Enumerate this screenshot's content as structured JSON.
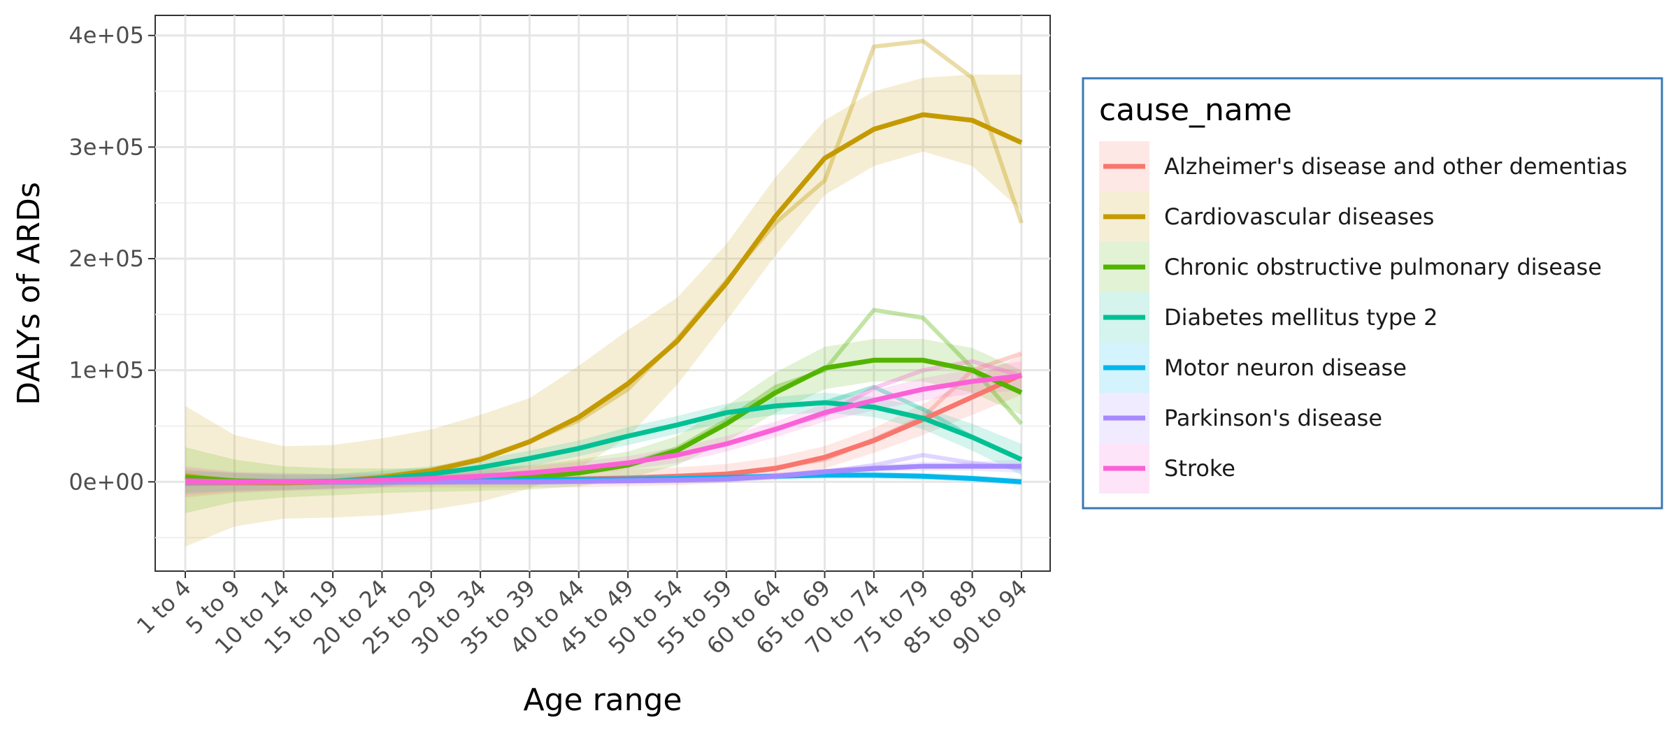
{
  "chart_data": {
    "type": "line",
    "xlabel": "Age range",
    "ylabel": "DALYs of ARDs",
    "categories": [
      "1 to 4",
      "5 to 9",
      "10 to 14",
      "15 to 19",
      "20 to 24",
      "25 to 29",
      "30 to 34",
      "35 to 39",
      "40 to 44",
      "45 to 49",
      "50 to 54",
      "55 to 59",
      "60 to 64",
      "65 to 69",
      "70 to 74",
      "75 to 79",
      "85 to 89",
      "90 to 94"
    ],
    "y_ticks": [
      0,
      100000,
      200000,
      300000,
      400000
    ],
    "y_tick_labels": [
      "0e+00",
      "1e+05",
      "2e+05",
      "3e+05",
      "4e+05"
    ],
    "ylim": [
      -80000,
      418000
    ],
    "grid": true,
    "legend": {
      "title": "cause_name",
      "position": "right",
      "border_color": "#3a78b5"
    },
    "series": [
      {
        "name": "Alzheimer's disease and other dementias",
        "color": "#f8766d",
        "values": [
          -1000,
          -1000,
          -1000,
          0,
          500,
          1000,
          1500,
          2000,
          2500,
          3500,
          5000,
          7000,
          12000,
          22000,
          37000,
          56000,
          76000,
          96000
        ],
        "raw": [
          -1000,
          -1000,
          -1000,
          0,
          500,
          1000,
          1500,
          2000,
          2500,
          3500,
          5000,
          7000,
          13000,
          20000,
          38000,
          58000,
          100000,
          115000
        ],
        "ci_lower": [
          -14000,
          -10000,
          -8000,
          -6000,
          -5000,
          -5000,
          -5000,
          -5000,
          -5000,
          -4000,
          -3000,
          -1000,
          3000,
          12000,
          26000,
          42000,
          60000,
          78000
        ],
        "ci_upper": [
          12000,
          8000,
          6000,
          6000,
          6000,
          7000,
          8000,
          9000,
          10000,
          11000,
          13000,
          16000,
          22000,
          32000,
          48000,
          70000,
          92000,
          114000
        ]
      },
      {
        "name": "Cardiovascular diseases",
        "color": "#c49a00",
        "values": [
          5000,
          0,
          -1000,
          0,
          4000,
          10000,
          20000,
          36000,
          58000,
          88000,
          126000,
          178000,
          238000,
          290000,
          316000,
          329000,
          324000,
          304000
        ],
        "raw": [
          6000,
          1000,
          0,
          1000,
          5000,
          11000,
          21000,
          36000,
          55000,
          83000,
          128000,
          180000,
          232000,
          270000,
          390000,
          395000,
          362000,
          232000
        ],
        "ci_lower": [
          -58000,
          -40000,
          -33000,
          -32000,
          -30000,
          -25000,
          -18000,
          -6000,
          12000,
          40000,
          87000,
          144000,
          203000,
          257000,
          283000,
          296000,
          283000,
          243000
        ],
        "ci_upper": [
          68000,
          42000,
          32000,
          33000,
          39000,
          47000,
          60000,
          75000,
          104000,
          136000,
          165000,
          213000,
          273000,
          324000,
          350000,
          362000,
          365000,
          365000
        ]
      },
      {
        "name": "Chronic obstructive pulmonary disease",
        "color": "#53b400",
        "values": [
          4000,
          1000,
          0,
          0,
          1000,
          1500,
          2500,
          4000,
          8000,
          15000,
          28000,
          52000,
          80000,
          102000,
          109000,
          109000,
          100000,
          80000
        ],
        "raw": [
          5000,
          1000,
          0,
          0,
          1000,
          1500,
          3000,
          4500,
          9000,
          16000,
          30000,
          55000,
          85000,
          100000,
          154000,
          147000,
          102000,
          52000
        ],
        "ci_lower": [
          -28000,
          -18000,
          -14000,
          -12000,
          -10000,
          -9000,
          -8000,
          -7000,
          -4000,
          3000,
          15000,
          36000,
          62000,
          83000,
          90000,
          90000,
          80000,
          60000
        ],
        "ci_upper": [
          31000,
          20000,
          14000,
          12000,
          12000,
          12000,
          13000,
          15000,
          20000,
          27000,
          41000,
          68000,
          98000,
          121000,
          128000,
          128000,
          120000,
          100000
        ]
      },
      {
        "name": "Diabetes mellitus type 2",
        "color": "#00c094",
        "values": [
          0,
          0,
          0,
          500,
          3000,
          7000,
          13000,
          21000,
          30000,
          41000,
          51000,
          62000,
          68000,
          71000,
          67000,
          57000,
          40000,
          20000
        ],
        "raw": [
          0,
          0,
          0,
          500,
          3000,
          7000,
          13000,
          21000,
          30000,
          41000,
          51000,
          62000,
          68000,
          71000,
          85000,
          65000,
          40000,
          20000
        ],
        "ci_lower": [
          -10000,
          -8000,
          -7000,
          -6000,
          -4000,
          0,
          6000,
          14000,
          23000,
          33000,
          43000,
          54000,
          60000,
          62000,
          58000,
          47000,
          28000,
          6000
        ],
        "ci_upper": [
          10000,
          8000,
          7000,
          7000,
          10000,
          14000,
          20000,
          28000,
          37000,
          49000,
          59000,
          70000,
          76000,
          80000,
          76000,
          67000,
          52000,
          34000
        ]
      },
      {
        "name": "Motor neuron disease",
        "color": "#00b6eb",
        "values": [
          0,
          0,
          0,
          0,
          0,
          500,
          1000,
          1500,
          2000,
          2500,
          3000,
          4000,
          5000,
          6000,
          6000,
          5000,
          3000,
          0
        ],
        "raw": [
          0,
          0,
          0,
          0,
          0,
          500,
          1000,
          1500,
          2000,
          2500,
          3000,
          4000,
          5000,
          6000,
          6000,
          5000,
          3000,
          0
        ],
        "ci_lower": [
          -4000,
          -3000,
          -3000,
          -3000,
          -3000,
          -2500,
          -2000,
          -1500,
          -1000,
          -500,
          0,
          1000,
          2000,
          3000,
          3000,
          2000,
          0,
          -3000
        ],
        "ci_upper": [
          4000,
          3000,
          3000,
          3000,
          3000,
          3500,
          4000,
          4500,
          5000,
          5500,
          6000,
          7000,
          8000,
          9000,
          9000,
          8000,
          6000,
          3000
        ]
      },
      {
        "name": "Parkinson's disease",
        "color": "#a58aff",
        "values": [
          0,
          0,
          0,
          0,
          0,
          0,
          0,
          0,
          500,
          1000,
          1500,
          2500,
          5000,
          9000,
          12000,
          14000,
          14000,
          14000
        ],
        "raw": [
          0,
          0,
          0,
          0,
          0,
          0,
          0,
          0,
          500,
          1000,
          1500,
          2500,
          5000,
          9000,
          15000,
          24000,
          17000,
          12000
        ],
        "ci_lower": [
          -3000,
          -3000,
          -3000,
          -3000,
          -3000,
          -3000,
          -3000,
          -3000,
          -2500,
          -2000,
          -1500,
          -500,
          2000,
          6000,
          9000,
          10000,
          10000,
          8000
        ],
        "ci_upper": [
          3000,
          3000,
          3000,
          3000,
          3000,
          3000,
          3000,
          3000,
          3500,
          4000,
          4500,
          5500,
          8000,
          12000,
          15000,
          18000,
          18000,
          20000
        ]
      },
      {
        "name": "Stroke",
        "color": "#fb61d7",
        "values": [
          1000,
          0,
          0,
          0,
          1500,
          3000,
          5000,
          8000,
          12000,
          17000,
          24000,
          34000,
          47000,
          62000,
          73000,
          83000,
          90000,
          95000
        ],
        "raw": [
          1000,
          0,
          0,
          0,
          1500,
          3000,
          5000,
          8000,
          12000,
          17000,
          24000,
          34000,
          48000,
          60000,
          84000,
          100000,
          108000,
          95000
        ],
        "ci_lower": [
          -12000,
          -9000,
          -8000,
          -7000,
          -5000,
          -3000,
          -1000,
          2000,
          6000,
          11000,
          17000,
          27000,
          40000,
          54000,
          64000,
          73000,
          79000,
          82000
        ],
        "ci_upper": [
          14000,
          9000,
          8000,
          7000,
          8000,
          9000,
          11000,
          14000,
          18000,
          23000,
          31000,
          41000,
          54000,
          70000,
          82000,
          93000,
          101000,
          108000
        ]
      }
    ]
  }
}
